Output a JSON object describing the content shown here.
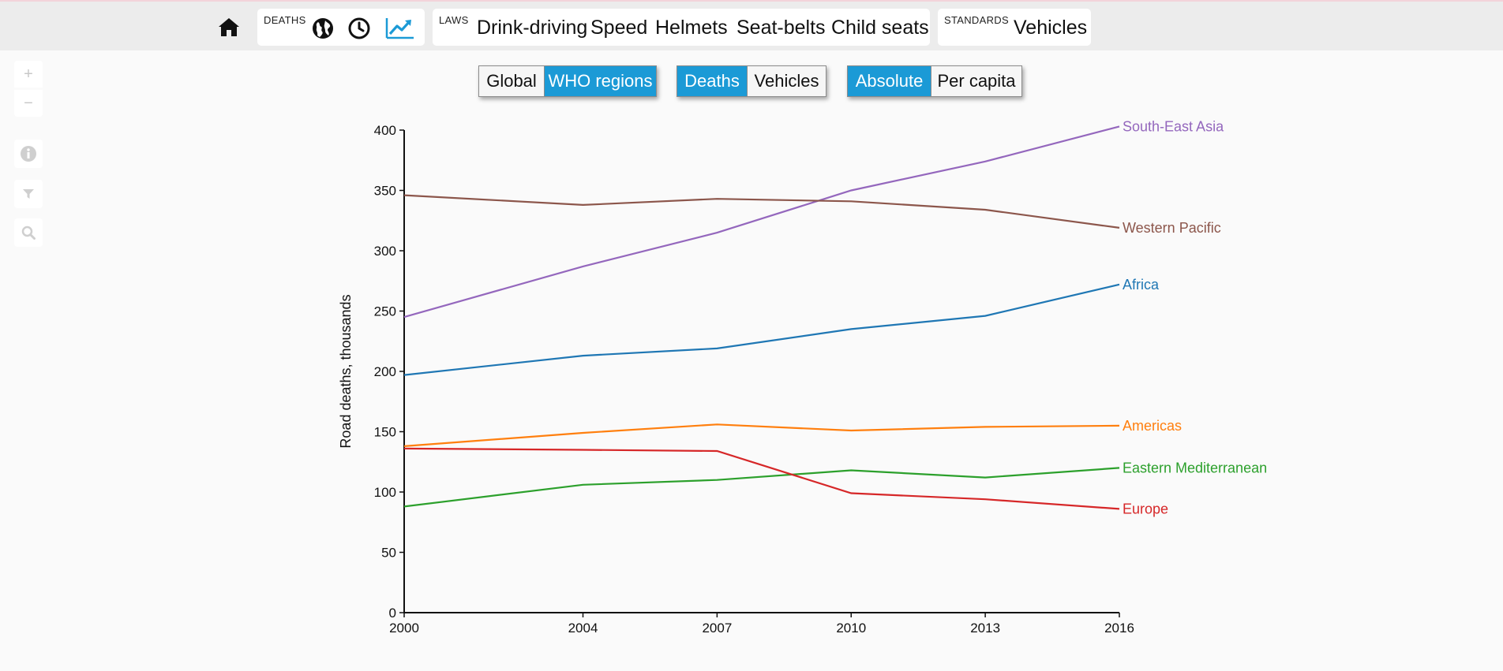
{
  "nav": {
    "deaths_label": "DEATHS",
    "laws_label": "LAWS",
    "laws": [
      "Drink-driving",
      "Speed",
      "Helmets",
      "Seat-belts",
      "Child seats"
    ],
    "standards_label": "STANDARDS",
    "standards": [
      "Vehicles"
    ],
    "accent": "#1b9ad6"
  },
  "toggles": {
    "scope": {
      "options": [
        "Global",
        "WHO regions"
      ],
      "selected": "WHO regions"
    },
    "measure": {
      "options": [
        "Deaths",
        "Vehicles"
      ],
      "selected": "Deaths"
    },
    "scale": {
      "options": [
        "Absolute",
        "Per capita"
      ],
      "selected": "Absolute"
    }
  },
  "tools": {
    "zoom_in": "+",
    "zoom_out": "−"
  },
  "chart_data": {
    "type": "line",
    "xlabel": "",
    "ylabel": "Road deaths, thousands",
    "x": [
      2000,
      2004,
      2007,
      2010,
      2013,
      2016
    ],
    "ylim": [
      0,
      400
    ],
    "yticks": [
      0,
      50,
      100,
      150,
      200,
      250,
      300,
      350,
      400
    ],
    "grid": false,
    "legend": "inline-right",
    "series": [
      {
        "name": "South-East Asia",
        "color": "#9467bd",
        "values": [
          245,
          287,
          315,
          350,
          374,
          403
        ]
      },
      {
        "name": "Western Pacific",
        "color": "#8c564b",
        "values": [
          346,
          338,
          343,
          341,
          334,
          319
        ]
      },
      {
        "name": "Africa",
        "color": "#1f77b4",
        "values": [
          197,
          213,
          219,
          235,
          246,
          272
        ]
      },
      {
        "name": "Americas",
        "color": "#ff7f0e",
        "values": [
          138,
          149,
          156,
          151,
          154,
          155
        ]
      },
      {
        "name": "Eastern Mediterranean",
        "color": "#2ca02c",
        "values": [
          88,
          106,
          110,
          118,
          112,
          120
        ]
      },
      {
        "name": "Europe",
        "color": "#d62728",
        "values": [
          136,
          135,
          134,
          99,
          94,
          86
        ]
      }
    ]
  }
}
